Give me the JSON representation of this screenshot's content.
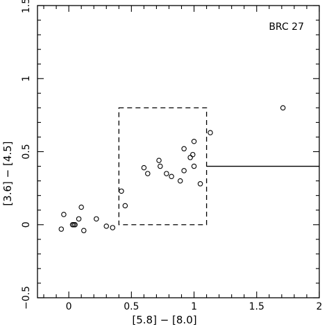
{
  "chart_data": {
    "type": "scatter",
    "title": "",
    "xlabel": "[5.8] − [8.0]",
    "ylabel": "[3.6] − [4.5]",
    "xlim": [
      -0.25,
      2.0
    ],
    "ylim": [
      -0.5,
      1.5
    ],
    "x_major_ticks": [
      0,
      0.5,
      1,
      1.5,
      2
    ],
    "x_tick_labels": [
      "0",
      "0.5",
      "1",
      "1.5",
      "2"
    ],
    "y_major_ticks": [
      -0.5,
      0,
      0.5,
      1,
      1.5
    ],
    "y_tick_labels": [
      "−0.5",
      "0",
      "0.5",
      "1",
      "1.5"
    ],
    "grid": false,
    "annotation": "BRC 27",
    "series": [
      {
        "marker": "open-circle",
        "points": [
          {
            "x": -0.06,
            "y": -0.03
          },
          {
            "x": -0.04,
            "y": 0.07
          },
          {
            "x": 0.03,
            "y": 0.0
          },
          {
            "x": 0.04,
            "y": 0.0
          },
          {
            "x": 0.05,
            "y": 0.0
          },
          {
            "x": 0.08,
            "y": 0.04
          },
          {
            "x": 0.1,
            "y": 0.12
          },
          {
            "x": 0.12,
            "y": -0.04
          },
          {
            "x": 0.22,
            "y": 0.04
          },
          {
            "x": 0.3,
            "y": -0.01
          },
          {
            "x": 0.35,
            "y": -0.02
          },
          {
            "x": 0.42,
            "y": 0.23
          },
          {
            "x": 0.45,
            "y": 0.13
          },
          {
            "x": 0.6,
            "y": 0.39
          },
          {
            "x": 0.63,
            "y": 0.35
          },
          {
            "x": 0.72,
            "y": 0.44
          },
          {
            "x": 0.73,
            "y": 0.4
          },
          {
            "x": 0.78,
            "y": 0.35
          },
          {
            "x": 0.82,
            "y": 0.33
          },
          {
            "x": 0.89,
            "y": 0.3
          },
          {
            "x": 0.92,
            "y": 0.37
          },
          {
            "x": 0.92,
            "y": 0.52
          },
          {
            "x": 0.97,
            "y": 0.46
          },
          {
            "x": 0.99,
            "y": 0.48
          },
          {
            "x": 1.0,
            "y": 0.4
          },
          {
            "x": 1.0,
            "y": 0.57
          },
          {
            "x": 1.05,
            "y": 0.28
          },
          {
            "x": 1.13,
            "y": 0.63
          },
          {
            "x": 1.71,
            "y": 0.8
          }
        ]
      }
    ],
    "box": {
      "style": "dashed",
      "x0": 0.4,
      "x1": 1.1,
      "y0": 0.0,
      "y1": 0.8
    },
    "hline": {
      "style": "solid",
      "y": 0.4,
      "x0": 1.1,
      "x1": 2.0
    }
  }
}
